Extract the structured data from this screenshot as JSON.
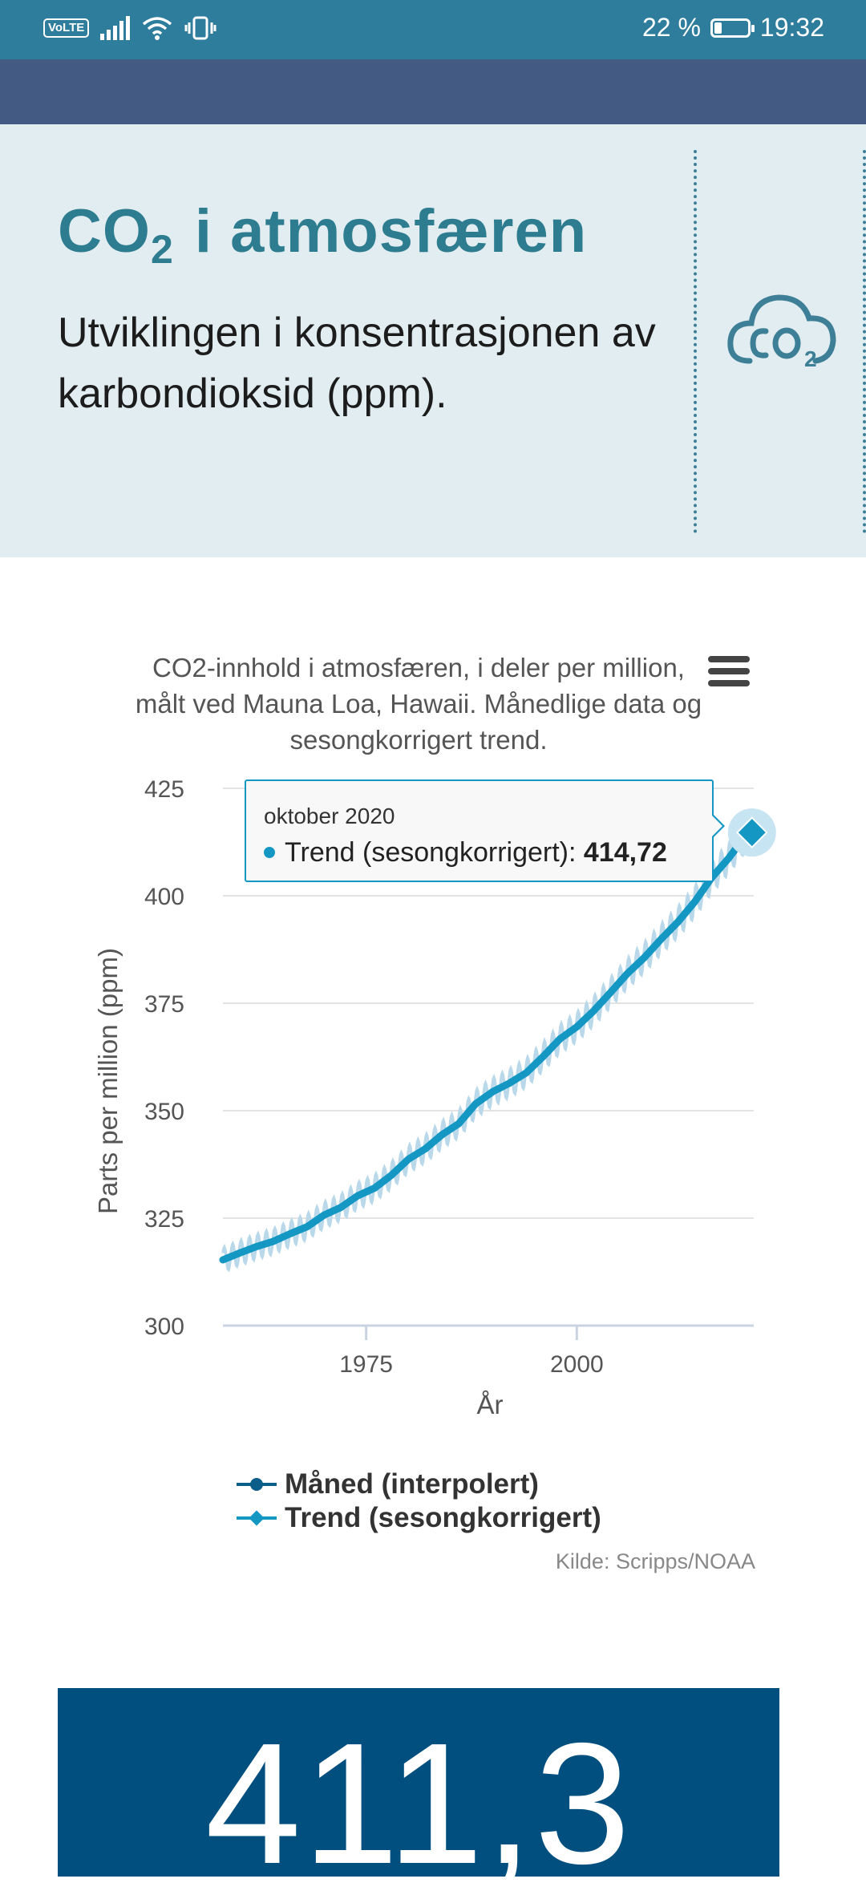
{
  "status_bar": {
    "carrier_badge": "VoLTE",
    "battery": "22 %",
    "battery_level_fraction": 0.22,
    "time": "19:32"
  },
  "hero": {
    "title_co": "CO",
    "title_sub": "2",
    "title_rest": " i atmosfæren",
    "subtitle": "Utviklingen i konsentrasjonen av karbondioksid (ppm).",
    "icon": "co2-cloud-icon",
    "accent": "#2d7c8f"
  },
  "chart_data": {
    "type": "line",
    "title": "CO2-innhold i atmosfæren, i deler per million, målt ved Mauna Loa, Hawaii. Månedlige data og sesongkorrigert trend.",
    "xlabel": "År",
    "ylabel": "Parts per million (ppm)",
    "xlim": [
      1958,
      2021
    ],
    "ylim": [
      300,
      425
    ],
    "yticks": [
      "300",
      "325",
      "350",
      "375",
      "400",
      "425"
    ],
    "xticks": [
      {
        "value": 1975,
        "label": "1975"
      },
      {
        "value": 2000,
        "label": "2000"
      }
    ],
    "grid": true,
    "series": [
      {
        "name": "Måned (interpolert)",
        "color": "#b9d8ea",
        "style": "monthly values, seasonal amplitude about 3 ppm around trend"
      },
      {
        "name": "Trend (sesongkorrigert)",
        "color": "#1597c4",
        "x": [
          1958,
          1960,
          1962,
          1964,
          1966,
          1968,
          1970,
          1972,
          1974,
          1976,
          1978,
          1980,
          1982,
          1984,
          1986,
          1988,
          1990,
          1992,
          1994,
          1996,
          1998,
          2000,
          2002,
          2004,
          2006,
          2008,
          2010,
          2012,
          2014,
          2016,
          2018,
          2020,
          2020.79
        ],
        "y": [
          315.3,
          316.9,
          318.4,
          319.6,
          321.4,
          323.0,
          325.7,
          327.5,
          330.2,
          332.0,
          335.0,
          338.7,
          341.1,
          344.4,
          347.0,
          351.6,
          354.4,
          356.4,
          358.8,
          362.6,
          366.7,
          369.5,
          373.2,
          377.5,
          381.9,
          385.6,
          389.9,
          393.9,
          398.6,
          404.2,
          408.7,
          413.9,
          414.72
        ]
      }
    ],
    "tooltip": {
      "date": "oktober 2020",
      "series_label": "Trend (sesongkorrigert): ",
      "value": "414,72"
    },
    "legend": {
      "position": "bottom",
      "items": [
        "Måned (interpolert)",
        "Trend (sesongkorrigert)"
      ],
      "colors": [
        "#0b5d8a",
        "#1597c4"
      ]
    },
    "source": "Kilde: Scripps/NOAA"
  },
  "bigbox": {
    "value": "411,3",
    "color": "#014f7f"
  }
}
